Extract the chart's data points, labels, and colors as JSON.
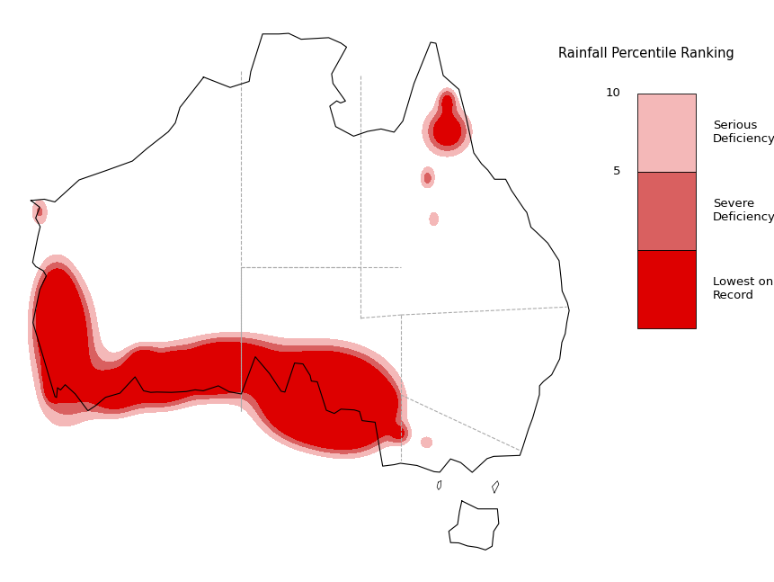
{
  "title": "Rainfall Percentile Ranking",
  "legend_labels": [
    "Serious\nDeficiency",
    "Severe\nDeficiency",
    "Lowest on\nRecord"
  ],
  "figsize": [
    8.62,
    6.47
  ],
  "dpi": 100,
  "background_color": "#ffffff",
  "coastline_color": "#000000",
  "border_color": "#aaaaaa",
  "serious_deficiency_color": "#f4b8b8",
  "severe_deficiency_color": "#d96060",
  "lowest_on_record_color": "#dd0000",
  "map_lon_min": 112,
  "map_lon_max": 154,
  "map_lat_min": -45,
  "map_lat_max": -10
}
